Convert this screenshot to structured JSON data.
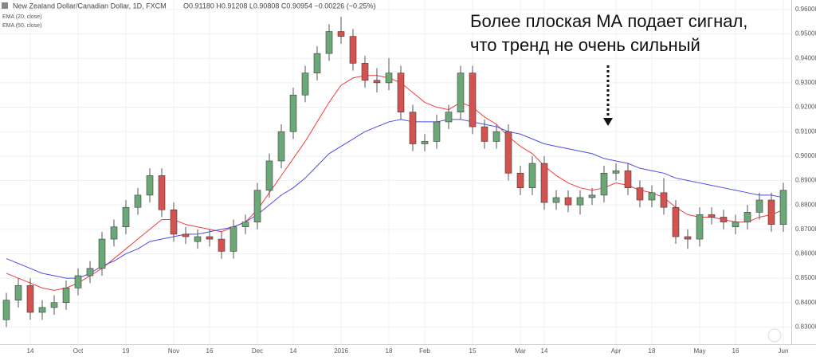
{
  "chart_data": {
    "type": "candlestick",
    "title": "New Zealand Dollar/Canadian Dollar, 1D, FXCM",
    "ohlc_label": "O0.91180 H0.91208 L0.90808 C0.90954 −0.00226 (−0.25%)",
    "annotation": [
      "Более плоская МА подает сигнал,",
      "что тренд не очень сильный"
    ],
    "categories": [
      null,
      null,
      "14",
      null,
      null,
      null,
      "Oct",
      null,
      null,
      null,
      "19",
      null,
      null,
      null,
      "Nov",
      null,
      null,
      "16",
      null,
      null,
      null,
      "Dec",
      null,
      null,
      "14",
      null,
      null,
      null,
      "2016",
      null,
      null,
      null,
      "18",
      null,
      null,
      "Feb",
      null,
      null,
      null,
      "15",
      null,
      null,
      null,
      "Mar",
      null,
      "14",
      null,
      null,
      null,
      null,
      null,
      "Apr",
      null,
      null,
      "18",
      null,
      null,
      null,
      "May",
      null,
      null,
      "16",
      null,
      null,
      null,
      "Jun"
    ],
    "open": [
      0.833,
      0.841,
      0.847,
      0.836,
      0.838,
      0.84,
      0.846,
      0.851,
      0.854,
      0.866,
      0.871,
      0.879,
      0.884,
      0.892,
      0.878,
      0.868,
      0.865,
      0.867,
      0.866,
      0.861,
      0.871,
      0.873,
      0.886,
      0.898,
      0.91,
      0.925,
      0.934,
      0.942,
      0.951,
      0.949,
      0.938,
      0.931,
      0.93,
      0.934,
      0.918,
      0.905,
      0.906,
      0.914,
      0.918,
      0.934,
      0.912,
      0.906,
      0.91,
      0.893,
      0.887,
      0.897,
      0.881,
      0.883,
      0.88,
      0.883,
      0.884,
      0.893,
      0.894,
      0.887,
      0.882,
      0.885,
      0.879,
      0.867,
      0.866,
      0.876,
      0.875,
      0.871,
      0.873,
      0.877,
      0.882,
      0.872
    ],
    "high": [
      0.844,
      0.85,
      0.85,
      0.841,
      0.843,
      0.849,
      0.854,
      0.857,
      0.869,
      0.874,
      0.882,
      0.887,
      0.895,
      0.895,
      0.881,
      0.871,
      0.87,
      0.87,
      0.869,
      0.874,
      0.876,
      0.889,
      0.901,
      0.913,
      0.928,
      0.937,
      0.945,
      0.954,
      0.957,
      0.952,
      0.941,
      0.936,
      0.94,
      0.937,
      0.921,
      0.909,
      0.917,
      0.921,
      0.937,
      0.937,
      0.915,
      0.913,
      0.913,
      0.896,
      0.9,
      0.9,
      0.886,
      0.886,
      0.886,
      0.887,
      0.896,
      0.897,
      0.897,
      0.89,
      0.888,
      0.891,
      0.882,
      0.87,
      0.879,
      0.879,
      0.878,
      0.876,
      0.88,
      0.885,
      0.885,
      0.889
    ],
    "low": [
      0.83,
      0.838,
      0.833,
      0.833,
      0.835,
      0.837,
      0.843,
      0.848,
      0.851,
      0.863,
      0.868,
      0.876,
      0.881,
      0.875,
      0.865,
      0.864,
      0.862,
      0.863,
      0.858,
      0.858,
      0.868,
      0.87,
      0.883,
      0.895,
      0.907,
      0.922,
      0.931,
      0.939,
      0.946,
      0.935,
      0.928,
      0.926,
      0.927,
      0.915,
      0.902,
      0.902,
      0.903,
      0.911,
      0.915,
      0.909,
      0.903,
      0.903,
      0.89,
      0.884,
      0.884,
      0.878,
      0.878,
      0.877,
      0.876,
      0.88,
      0.881,
      0.89,
      0.884,
      0.879,
      0.879,
      0.876,
      0.864,
      0.862,
      0.863,
      0.872,
      0.87,
      0.868,
      0.87,
      0.874,
      0.869,
      0.869
    ],
    "close": [
      0.841,
      0.847,
      0.836,
      0.838,
      0.84,
      0.846,
      0.851,
      0.854,
      0.866,
      0.871,
      0.879,
      0.884,
      0.892,
      0.878,
      0.868,
      0.867,
      0.867,
      0.866,
      0.861,
      0.871,
      0.873,
      0.886,
      0.898,
      0.91,
      0.925,
      0.934,
      0.942,
      0.951,
      0.949,
      0.938,
      0.931,
      0.93,
      0.934,
      0.918,
      0.905,
      0.906,
      0.914,
      0.918,
      0.934,
      0.912,
      0.906,
      0.91,
      0.893,
      0.887,
      0.897,
      0.881,
      0.883,
      0.88,
      0.883,
      0.884,
      0.893,
      0.894,
      0.887,
      0.882,
      0.885,
      0.879,
      0.867,
      0.866,
      0.876,
      0.875,
      0.873,
      0.873,
      0.877,
      0.882,
      0.872,
      0.886
    ],
    "up_color": "#6ba878",
    "down_color": "#d2534f",
    "series": [
      {
        "name": "EMA (20, close)",
        "color": "#f23c3c",
        "values": [
          0.852,
          0.85,
          0.848,
          0.846,
          0.845,
          0.846,
          0.848,
          0.851,
          0.854,
          0.858,
          0.862,
          0.866,
          0.87,
          0.874,
          0.874,
          0.872,
          0.871,
          0.87,
          0.869,
          0.871,
          0.873,
          0.878,
          0.885,
          0.892,
          0.899,
          0.906,
          0.914,
          0.922,
          0.929,
          0.932,
          0.933,
          0.933,
          0.932,
          0.93,
          0.926,
          0.922,
          0.92,
          0.919,
          0.922,
          0.92,
          0.916,
          0.913,
          0.908,
          0.904,
          0.901,
          0.896,
          0.892,
          0.889,
          0.887,
          0.886,
          0.887,
          0.889,
          0.888,
          0.886,
          0.885,
          0.883,
          0.879,
          0.876,
          0.875,
          0.875,
          0.874,
          0.873,
          0.873,
          0.875,
          0.876,
          0.878
        ]
      },
      {
        "name": "EMA (50, close)",
        "color": "#4b4be8",
        "values": [
          0.858,
          0.856,
          0.854,
          0.852,
          0.851,
          0.85,
          0.85,
          0.852,
          0.855,
          0.857,
          0.86,
          0.862,
          0.865,
          0.866,
          0.867,
          0.868,
          0.868,
          0.869,
          0.87,
          0.871,
          0.873,
          0.876,
          0.88,
          0.884,
          0.887,
          0.891,
          0.896,
          0.901,
          0.904,
          0.907,
          0.91,
          0.912,
          0.914,
          0.915,
          0.914,
          0.914,
          0.914,
          0.915,
          0.915,
          0.914,
          0.913,
          0.912,
          0.91,
          0.909,
          0.907,
          0.905,
          0.904,
          0.903,
          0.902,
          0.901,
          0.899,
          0.898,
          0.897,
          0.895,
          0.894,
          0.893,
          0.891,
          0.89,
          0.889,
          0.888,
          0.887,
          0.886,
          0.885,
          0.884,
          0.884,
          0.883
        ]
      }
    ],
    "ylim": [
      0.8236,
      0.9639
    ],
    "yticks": [
      {
        "value": 0.83,
        "label": "0.83000"
      },
      {
        "value": 0.84,
        "label": "0.84000"
      },
      {
        "value": 0.85,
        "label": "0.85000"
      },
      {
        "value": 0.86,
        "label": "0.86000"
      },
      {
        "value": 0.87,
        "label": "0.87000"
      },
      {
        "value": 0.88,
        "label": "0.88000"
      },
      {
        "value": 0.89,
        "label": "0.89000"
      },
      {
        "value": 0.9,
        "label": "0.90000"
      },
      {
        "value": 0.91,
        "label": "0.91000"
      },
      {
        "value": 0.92,
        "label": "0.92000"
      },
      {
        "value": 0.93,
        "label": "0.93000"
      },
      {
        "value": 0.94,
        "label": "0.94000"
      },
      {
        "value": 0.95,
        "label": "0.95000"
      },
      {
        "value": 0.96,
        "label": "0.96000"
      }
    ],
    "grid": true
  }
}
